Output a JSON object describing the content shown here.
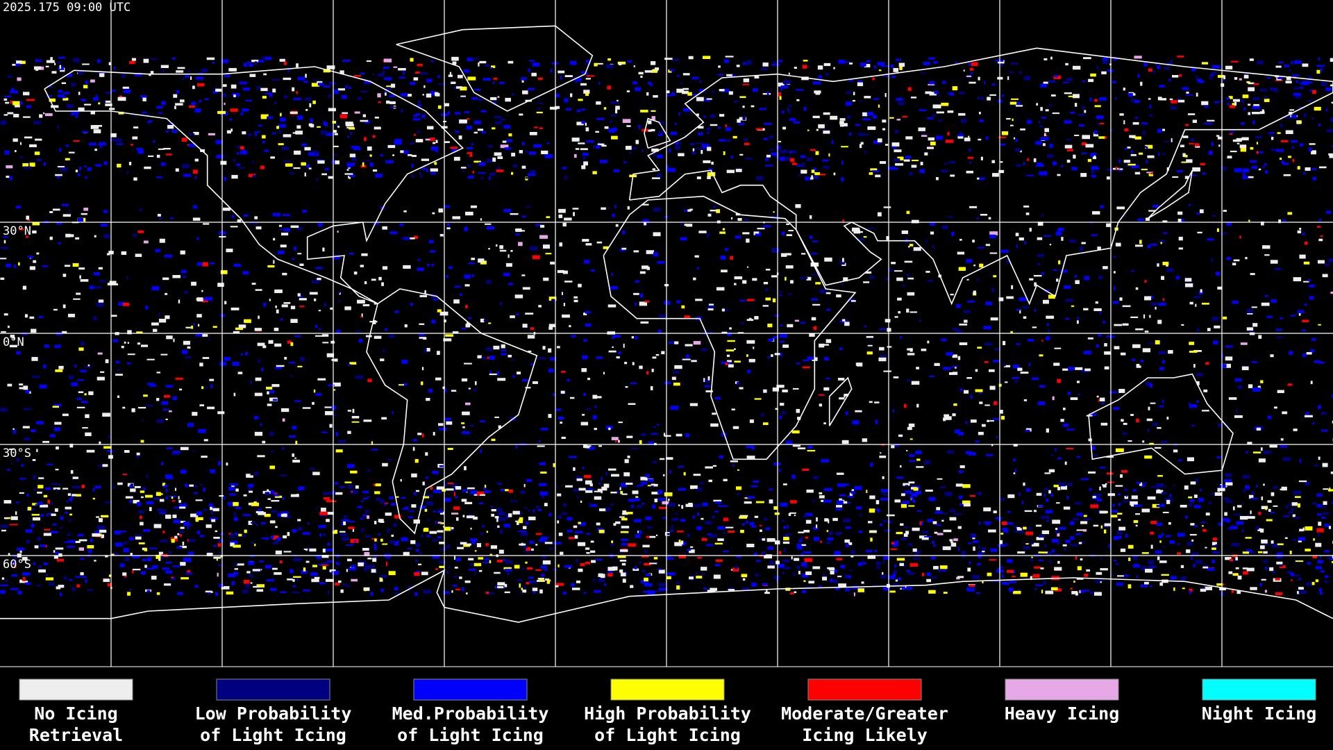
{
  "timestamp": "2025.175 09:00 UTC",
  "lat_labels": [
    "30°N",
    "0°N",
    "30°S",
    "60°S"
  ],
  "legend": [
    {
      "lines": [
        "No Icing",
        "Retrieval"
      ],
      "color": "#eeeeee"
    },
    {
      "lines": [
        "Low Probability",
        "of Light Icing"
      ],
      "color": "#000080"
    },
    {
      "lines": [
        "Med.Probability",
        "of Light Icing"
      ],
      "color": "#0000ff"
    },
    {
      "lines": [
        "High Probability",
        "of Light Icing"
      ],
      "color": "#ffff00"
    },
    {
      "lines": [
        "Moderate/Greater",
        "Icing Likely"
      ],
      "color": "#ff0000"
    },
    {
      "lines": [
        "Heavy Icing"
      ],
      "color": "#e6a8e6"
    },
    {
      "lines": [
        "Night Icing"
      ],
      "color": "#00ffff"
    }
  ]
}
